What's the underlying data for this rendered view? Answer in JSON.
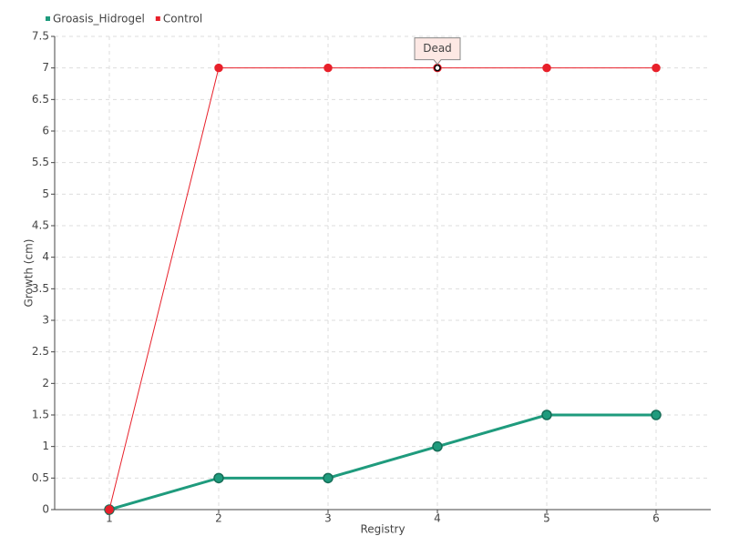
{
  "chart_data": {
    "type": "line",
    "x": [
      1,
      2,
      3,
      4,
      5,
      6
    ],
    "xlim": [
      0.5,
      6.5
    ],
    "xticks": [
      1,
      2,
      3,
      4,
      5,
      6
    ],
    "ylim": [
      0,
      7.5
    ],
    "yticks": [
      0,
      0.5,
      1,
      1.5,
      2,
      2.5,
      3,
      3.5,
      4,
      4.5,
      5,
      5.5,
      6,
      6.5,
      7,
      7.5
    ],
    "x_label": "Registry",
    "y_label": "Growth (cm)",
    "grid": true,
    "legend": "top-left",
    "series": [
      {
        "name": "Groasis_Hidrogel",
        "color": "#1f9b7d",
        "values": [
          0,
          0.5,
          0.5,
          1,
          1.5,
          1.5
        ]
      },
      {
        "name": "Control",
        "color": "#e8202a",
        "values": [
          0,
          7,
          7,
          7,
          7,
          7
        ]
      }
    ],
    "annotations": [
      {
        "text": "Dead",
        "x": 4,
        "y": 7
      }
    ]
  }
}
